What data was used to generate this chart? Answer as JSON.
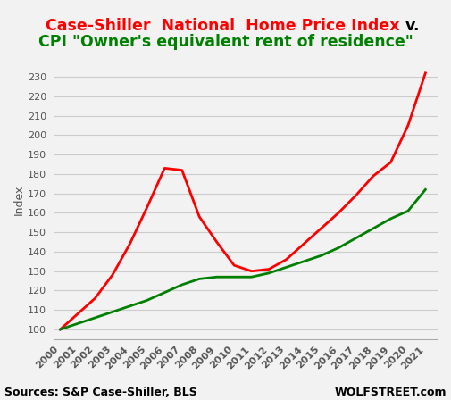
{
  "title_line1_red": "Case-Shiller  National  Home Price Index ",
  "title_line1_black": "v.",
  "title_line2": "CPI \"Owner's equivalent rent of residence\"",
  "ylabel": "Index",
  "source_left": "Sources: S&P Case-Shiller, BLS",
  "source_right": "WOLFSTREET.com",
  "years": [
    2000,
    2001,
    2002,
    2003,
    2004,
    2005,
    2006,
    2007,
    2008,
    2009,
    2010,
    2011,
    2012,
    2013,
    2014,
    2015,
    2016,
    2017,
    2018,
    2019,
    2020,
    2021
  ],
  "case_shiller": [
    100,
    108,
    116,
    128,
    144,
    163,
    183,
    182,
    158,
    145,
    133,
    130,
    131,
    136,
    144,
    152,
    160,
    169,
    179,
    186,
    205,
    232
  ],
  "cpi_oer": [
    100,
    103,
    106,
    109,
    112,
    115,
    119,
    123,
    126,
    127,
    127,
    127,
    129,
    132,
    135,
    138,
    142,
    147,
    152,
    157,
    161,
    172
  ],
  "case_shiller_color": "#FF0000",
  "cpi_oer_color": "#008000",
  "ylim_min": 95,
  "ylim_max": 238,
  "yticks": [
    100,
    110,
    120,
    130,
    140,
    150,
    160,
    170,
    180,
    190,
    200,
    210,
    220,
    230
  ],
  "grid_color": "#cccccc",
  "bg_color": "#f2f2f2",
  "title_fontsize": 12.5,
  "axis_label_fontsize": 9,
  "tick_label_fontsize": 8,
  "source_fontsize": 9
}
